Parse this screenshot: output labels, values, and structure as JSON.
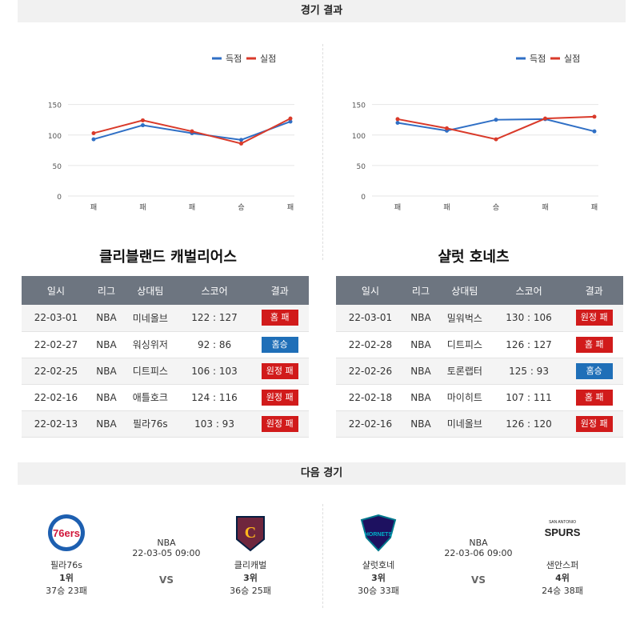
{
  "sections": {
    "results_title": "경기 결과",
    "next_title": "다음 경기"
  },
  "colors": {
    "scored": "#2f6fc5",
    "conceded": "#d93a2a",
    "loss_badge": "#d11b1b",
    "win_badge": "#1f6fb8"
  },
  "legend": {
    "scored": "득점",
    "conceded": "실점"
  },
  "chart_data": [
    {
      "type": "line",
      "categories": [
        "패",
        "패",
        "패",
        "승",
        "패"
      ],
      "series": [
        {
          "name": "득점",
          "values": [
            93,
            116,
            103,
            92,
            122
          ]
        },
        {
          "name": "실점",
          "values": [
            103,
            124,
            106,
            86,
            127
          ]
        }
      ],
      "yticks": [
        0,
        50,
        100,
        150
      ],
      "ylim": [
        0,
        160
      ],
      "grid": true,
      "legend_position": "top-right"
    },
    {
      "type": "line",
      "categories": [
        "패",
        "패",
        "승",
        "패",
        "패"
      ],
      "series": [
        {
          "name": "득점",
          "values": [
            120,
            107,
            125,
            126,
            106
          ]
        },
        {
          "name": "실점",
          "values": [
            126,
            111,
            93,
            127,
            130
          ]
        }
      ],
      "yticks": [
        0,
        50,
        100,
        150
      ],
      "ylim": [
        0,
        160
      ],
      "grid": true,
      "legend_position": "top-right"
    }
  ],
  "teams": [
    {
      "name": "클리블랜드 캐벌리어스",
      "headers": [
        "일시",
        "리그",
        "상대팀",
        "스코어",
        "결과"
      ],
      "rows": [
        {
          "date": "22-03-01",
          "league": "NBA",
          "opponent": "미네올브",
          "score": "122 : 127",
          "result": "홈 패",
          "win": false
        },
        {
          "date": "22-02-27",
          "league": "NBA",
          "opponent": "워싱위저",
          "score": "92 : 86",
          "result": "홈승",
          "win": true
        },
        {
          "date": "22-02-25",
          "league": "NBA",
          "opponent": "디트피스",
          "score": "106 : 103",
          "result": "원정 패",
          "win": false
        },
        {
          "date": "22-02-16",
          "league": "NBA",
          "opponent": "애틀호크",
          "score": "124 : 116",
          "result": "원정 패",
          "win": false
        },
        {
          "date": "22-02-13",
          "league": "NBA",
          "opponent": "필라76s",
          "score": "103 : 93",
          "result": "원정 패",
          "win": false
        }
      ]
    },
    {
      "name": "샬럿 호네츠",
      "headers": [
        "일시",
        "리그",
        "상대팀",
        "스코어",
        "결과"
      ],
      "rows": [
        {
          "date": "22-03-01",
          "league": "NBA",
          "opponent": "밀워벅스",
          "score": "130 : 106",
          "result": "원정 패",
          "win": false
        },
        {
          "date": "22-02-28",
          "league": "NBA",
          "opponent": "디트피스",
          "score": "126 : 127",
          "result": "홈 패",
          "win": false
        },
        {
          "date": "22-02-26",
          "league": "NBA",
          "opponent": "토론랩터",
          "score": "125 : 93",
          "result": "홈승",
          "win": true
        },
        {
          "date": "22-02-18",
          "league": "NBA",
          "opponent": "마이히트",
          "score": "107 : 111",
          "result": "홈 패",
          "win": false
        },
        {
          "date": "22-02-16",
          "league": "NBA",
          "opponent": "미네올브",
          "score": "126 : 120",
          "result": "원정 패",
          "win": false
        }
      ]
    }
  ],
  "next_games": [
    {
      "league": "NBA",
      "datetime": "22-03-05 09:00",
      "vs": "VS",
      "home": {
        "name": "필라76s",
        "rank": "1위",
        "record": "37승 23패",
        "logo": "76ers-logo",
        "logo_text": "76ers"
      },
      "away": {
        "name": "클리캐벌",
        "rank": "3위",
        "record": "36승 25패",
        "logo": "cavaliers-logo",
        "logo_text": "C"
      }
    },
    {
      "league": "NBA",
      "datetime": "22-03-06 09:00",
      "vs": "VS",
      "home": {
        "name": "샬럿호네",
        "rank": "3위",
        "record": "30승 33패",
        "logo": "hornets-logo",
        "logo_text": "HORNETS"
      },
      "away": {
        "name": "샌안스퍼",
        "rank": "4위",
        "record": "24승 38패",
        "logo": "spurs-logo",
        "logo_text": "SPURS",
        "logo_subtext": "SAN ANTONIO"
      }
    }
  ]
}
